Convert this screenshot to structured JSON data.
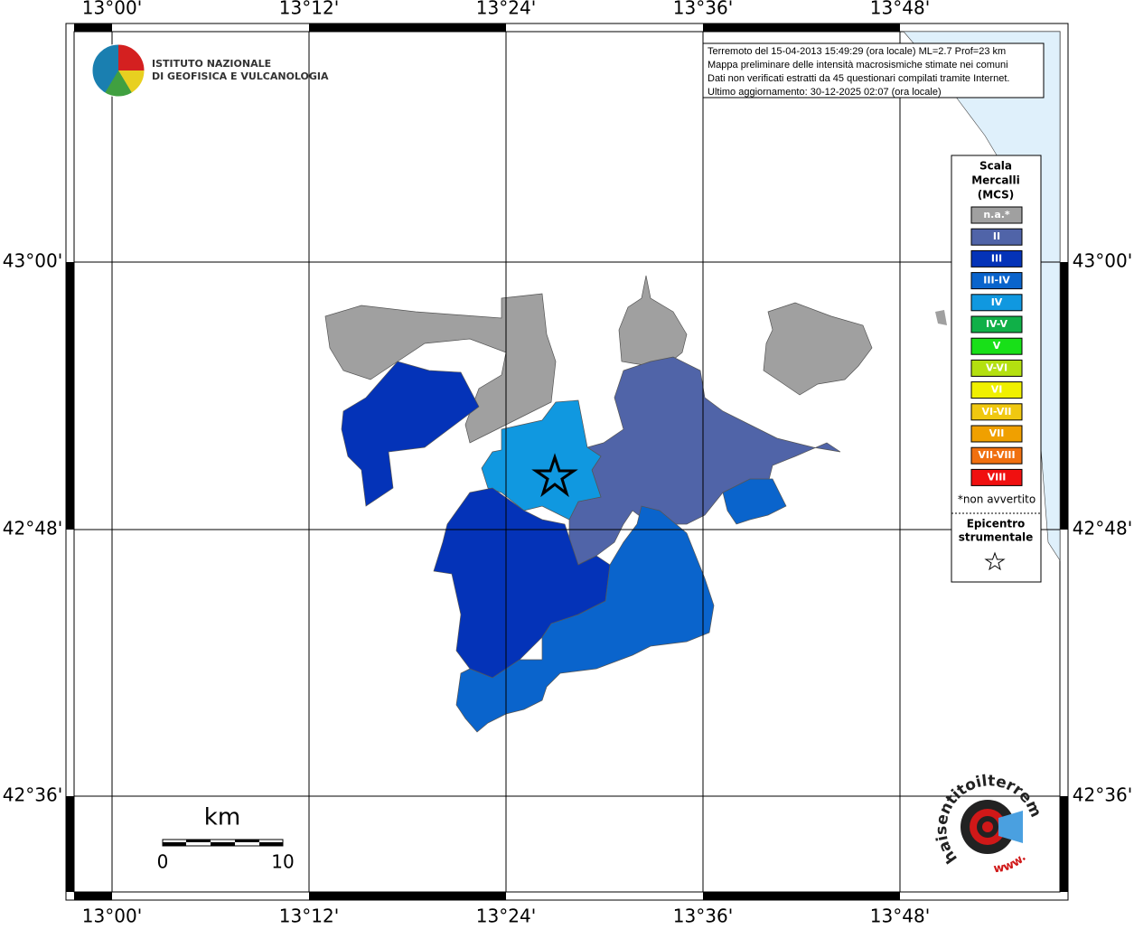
{
  "axes": {
    "top": [
      "13°00'",
      "13°12'",
      "13°24'",
      "13°36'",
      "13°48'"
    ],
    "bottom": [
      "13°00'",
      "13°12'",
      "13°24'",
      "13°36'",
      "13°48'"
    ],
    "left": [
      "43°00'",
      "42°48'",
      "42°36'"
    ],
    "right": [
      "43°00'",
      "42°48'",
      "42°36'"
    ]
  },
  "logo": {
    "line1": "ISTITUTO NAZIONALE",
    "line2": "DI GEOFISICA E VULCANOLOGIA"
  },
  "info": {
    "lines": [
      "Terremoto del 15-04-2013 15:49:29 (ora locale) ML=2.7 Prof=23 km",
      "Mappa preliminare delle intensità macrosismiche stimate nei comuni",
      "Dati non verificati estratti da 45 questionari compilati tramite Internet.",
      "Ultimo aggiornamento: 30-12-2025 02:07 (ora locale)"
    ]
  },
  "legend": {
    "title": [
      "Scala",
      "Mercalli",
      "(MCS)"
    ],
    "classes": [
      {
        "label": "n.a.*",
        "color": "#a0a0a0"
      },
      {
        "label": "II",
        "color": "#5064a8"
      },
      {
        "label": "III",
        "color": "#0433b8"
      },
      {
        "label": "III-IV",
        "color": "#0a64cc"
      },
      {
        "label": "IV",
        "color": "#1098e0"
      },
      {
        "label": "IV-V",
        "color": "#10b048"
      },
      {
        "label": "V",
        "color": "#18e018"
      },
      {
        "label": "V-VI",
        "color": "#b4e010"
      },
      {
        "label": "VI",
        "color": "#f0f000"
      },
      {
        "label": "VI-VII",
        "color": "#f0c810"
      },
      {
        "label": "VII",
        "color": "#f0a000"
      },
      {
        "label": "VII-VIII",
        "color": "#f07010"
      },
      {
        "label": "VIII",
        "color": "#f01010"
      }
    ],
    "note": "*non avvertito",
    "epicenter": [
      "Epicentro",
      "strumentale"
    ]
  },
  "scale_bar": {
    "unit": "km",
    "labels": [
      "0",
      "10"
    ]
  },
  "badge": {
    "text": "haisentitoilterremoto.it",
    "www": "www."
  }
}
